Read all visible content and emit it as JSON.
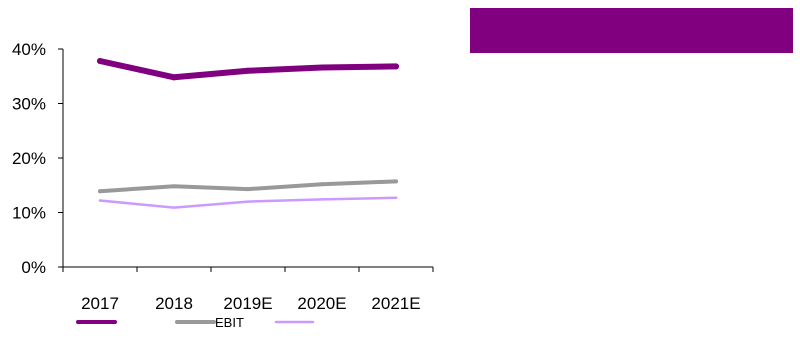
{
  "banner": {
    "color": "#800080"
  },
  "chart_data": {
    "type": "line",
    "categories": [
      "2017",
      "2018",
      "2019E",
      "2020E",
      "2021E"
    ],
    "ylim": [
      0,
      40
    ],
    "yticks": [
      "0%",
      "10%",
      "20%",
      "30%",
      "40%"
    ],
    "ytick_values": [
      0,
      10,
      20,
      30,
      40
    ],
    "grid": false,
    "legend_position": "bottom",
    "series": [
      {
        "key": "s1",
        "name": "",
        "color": "#800080",
        "width": 6,
        "values": [
          37.8,
          34.8,
          36.0,
          36.6,
          36.8
        ]
      },
      {
        "key": "s2",
        "name": "EBIT",
        "color": "#999999",
        "width": 4,
        "values": [
          13.9,
          14.8,
          14.3,
          15.2,
          15.7
        ]
      },
      {
        "key": "s3",
        "name": "",
        "color": "#cc99ff",
        "width": 2.5,
        "values": [
          12.2,
          10.9,
          12.0,
          12.4,
          12.7
        ]
      }
    ]
  }
}
